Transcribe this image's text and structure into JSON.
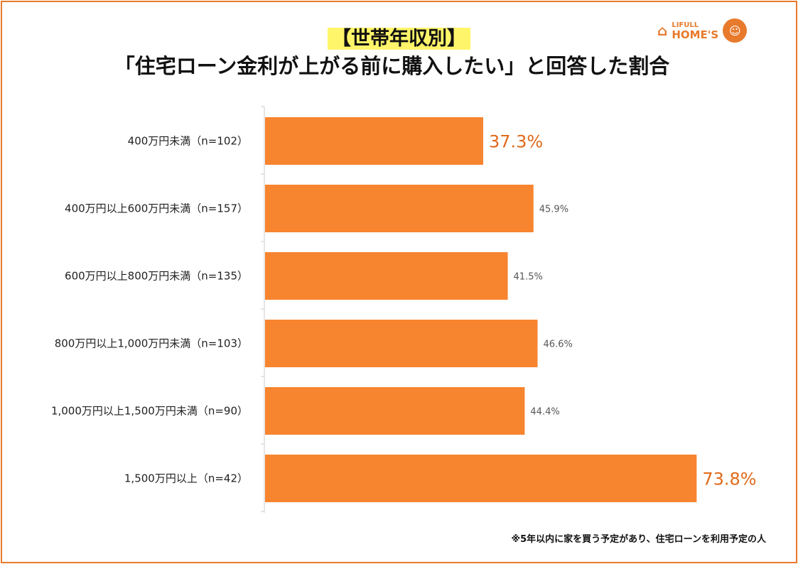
{
  "colors": {
    "bar": "#F7842F",
    "frame": "#E87A2C",
    "highlight": "#E06A1A",
    "title_highlight": "#FFF56A"
  },
  "logo": {
    "line1": "LIFULL",
    "line2": "HOME'S"
  },
  "chart_data": {
    "type": "bar",
    "orientation": "horizontal",
    "title_line1": "【世帯年収別】",
    "title_line2": "「住宅ローン金利が上がる前に購入したい」と回答した割合",
    "categories": [
      "400万円未満（n=102）",
      "400万円以上600万円未満（n=157）",
      "600万円以上800万円未満（n=135）",
      "800万円以上1,000万円未満（n=103）",
      "1,000万円以上1,500万円未満（n=90）",
      "1,500万円以上（n=42）"
    ],
    "values": [
      37.3,
      45.9,
      41.5,
      46.6,
      44.4,
      73.8
    ],
    "labels": [
      "37.3%",
      "45.9%",
      "41.5%",
      "46.6%",
      "44.4%",
      "73.8%"
    ],
    "highlighted": [
      true,
      false,
      false,
      false,
      false,
      true
    ],
    "xlim": [
      0,
      100
    ],
    "unit": "%",
    "grid": false,
    "footnote": "※5年以内に家を買う予定があり、住宅ローンを利用予定の人"
  }
}
